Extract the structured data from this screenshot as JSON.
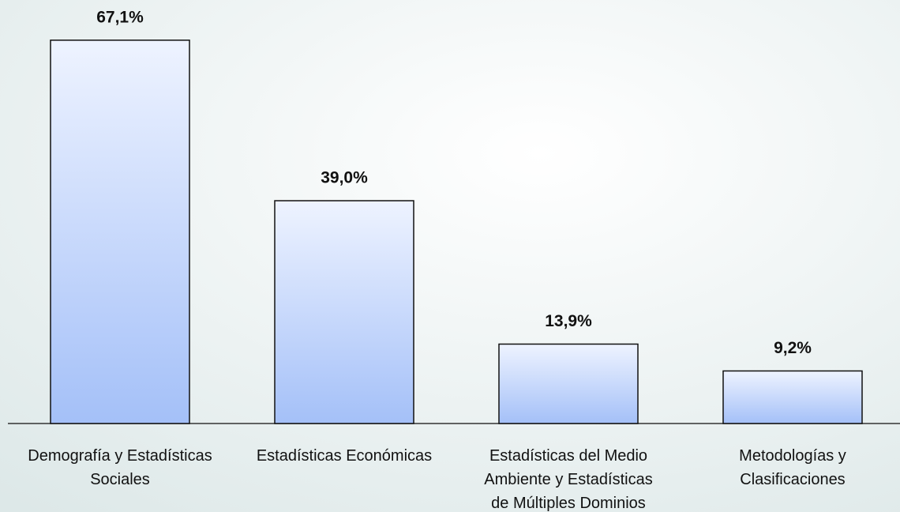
{
  "chart_data": {
    "type": "bar",
    "categories": [
      "Demografía y Estadísticas\nSociales",
      "Estadísticas Económicas",
      "Estadísticas del Medio\nAmbiente y Estadísticas\nde Múltiples Dominios",
      "Metodologías y\nClasificaciones"
    ],
    "values": [
      67.1,
      39.0,
      13.9,
      9.2
    ],
    "value_labels": [
      "67,1%",
      "39,0%",
      "13,9%",
      "9,2%"
    ],
    "color": "#a4c0f8"
  }
}
